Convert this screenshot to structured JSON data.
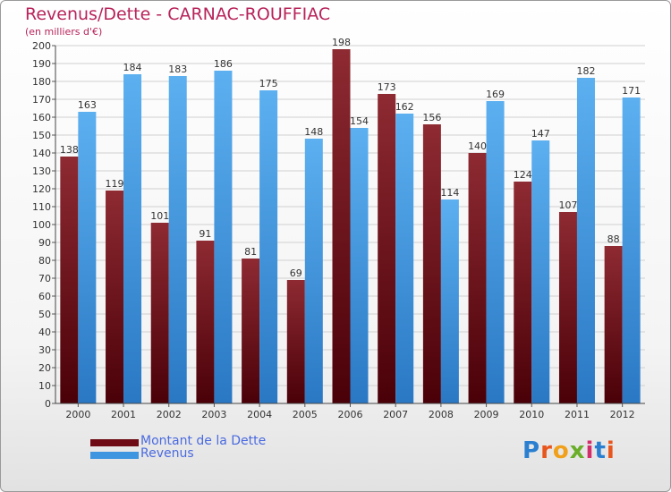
{
  "title": "Revenus/Dette - CARNAC-ROUFFIAC",
  "subtitle": "(en milliers d'€)",
  "logo": {
    "text": "Proxiti",
    "letters": [
      "P",
      "r",
      "o",
      "x",
      "i",
      "t",
      "i"
    ],
    "colors": [
      "#2a7fd0",
      "#e8561e",
      "#f0a01a",
      "#6aae2a",
      "#d42e6a",
      "#2a7fd0",
      "#e8561e"
    ]
  },
  "legend": [
    {
      "name": "Montant de la Dette",
      "color": "#6e0b14"
    },
    {
      "name": "Revenus",
      "color": "#3e96e0"
    }
  ],
  "chart_data": {
    "type": "bar",
    "title": "Revenus/Dette - CARNAC-ROUFFIAC",
    "subtitle": "(en milliers d'€)",
    "categories": [
      "2000",
      "2001",
      "2002",
      "2003",
      "2004",
      "2005",
      "2006",
      "2007",
      "2008",
      "2009",
      "2010",
      "2011",
      "2012"
    ],
    "series": [
      {
        "name": "Montant de la Dette",
        "values": [
          138,
          119,
          101,
          91,
          81,
          69,
          198,
          173,
          156,
          140,
          124,
          107,
          88
        ],
        "color": "#6e0b14"
      },
      {
        "name": "Revenus",
        "values": [
          163,
          184,
          183,
          186,
          175,
          148,
          154,
          162,
          114,
          169,
          147,
          182,
          171
        ],
        "color": "#3e96e0"
      }
    ],
    "ylim": [
      0,
      200
    ],
    "yticks": [
      0,
      10,
      20,
      30,
      40,
      50,
      60,
      70,
      80,
      90,
      100,
      110,
      120,
      130,
      140,
      150,
      160,
      170,
      180,
      190,
      200
    ],
    "grid": true,
    "legend_position": "bottom-left"
  }
}
